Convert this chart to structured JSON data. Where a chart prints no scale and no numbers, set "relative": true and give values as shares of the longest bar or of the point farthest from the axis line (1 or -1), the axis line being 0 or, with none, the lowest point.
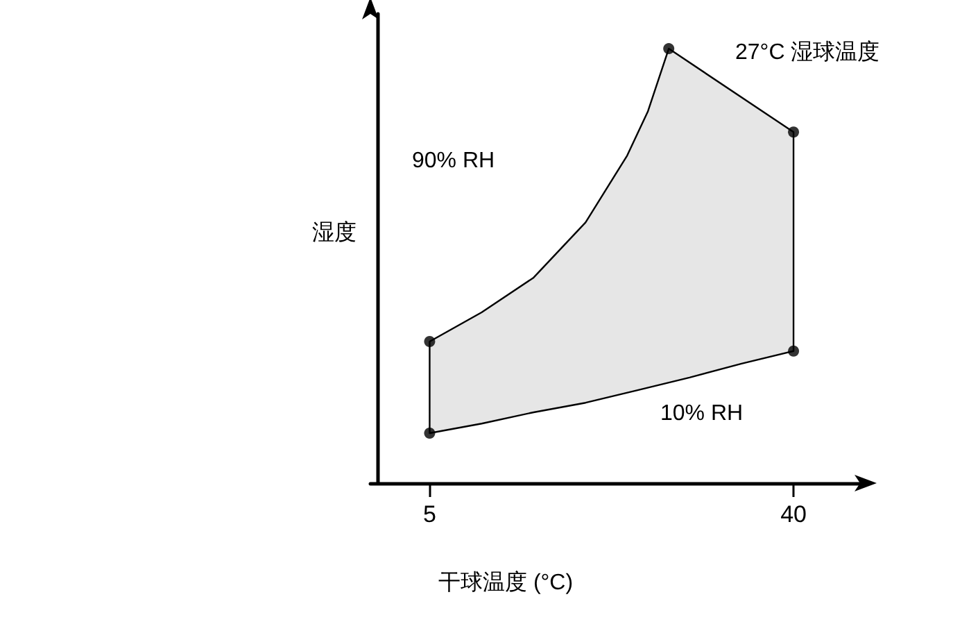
{
  "chart_data": {
    "type": "area",
    "relative": true,
    "xlabel": "干球温度 (°C)",
    "ylabel": "湿度",
    "xlim": [
      -0.7,
      46.4
    ],
    "xticks": [
      5,
      40
    ],
    "tick_labels": "x",
    "grid": false,
    "series": [
      {
        "color": "#e6e6e6",
        "x": [
          5,
          5,
          10,
          15,
          20,
          24,
          26,
          28,
          40,
          40,
          35,
          30,
          25,
          20,
          15,
          10,
          5
        ],
        "values": [
          0.115,
          0.326,
          0.393,
          0.473,
          0.6,
          0.754,
          0.856,
          1,
          0.808,
          0.304,
          0.275,
          0.243,
          0.214,
          0.185,
          0.163,
          0.137,
          0.115
        ]
      },
      {
        "type": "scatter",
        "color": "#000000",
        "marker": "circle",
        "x": [
          5,
          5,
          28,
          40,
          40
        ],
        "values": [
          0.115,
          0.326,
          1,
          0.808,
          0.304
        ]
      }
    ],
    "annotations": [
      "27°C 湿球温度",
      "90% RH",
      "10% RH"
    ]
  }
}
